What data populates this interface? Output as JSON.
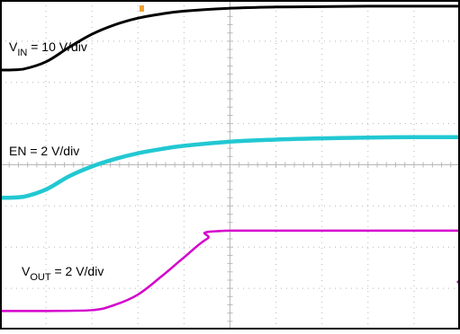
{
  "chart_data": {
    "type": "line",
    "title": "",
    "grid": true,
    "grid_divisions": {
      "x": 10,
      "y": 8
    },
    "colors": {
      "background": "#ffffff",
      "border": "#000000",
      "grid": "#b8b8b8",
      "trigger_marker": "#f0a030",
      "vin": "#000000",
      "en": "#22c8d2",
      "vout": "#d400cc"
    },
    "annotations": {
      "vin": {
        "main": "V",
        "sub": "IN",
        "rest": " = 10 V/div"
      },
      "en": {
        "text": "EN = 2 V/div"
      },
      "vout": {
        "main": "V",
        "sub": "OUT",
        "rest": " = 2 V/div"
      }
    },
    "series": [
      {
        "key": "vin",
        "x": [
          0,
          0.2,
          0.5,
          1.0,
          1.5,
          2.0,
          2.5,
          3.0,
          3.5,
          4.0,
          5.0,
          6.0,
          7.0,
          8.0,
          9.0,
          10.0
        ],
        "y": [
          6.3,
          6.3,
          6.32,
          6.5,
          6.85,
          7.17,
          7.4,
          7.56,
          7.66,
          7.73,
          7.8,
          7.83,
          7.84,
          7.85,
          7.85,
          7.85
        ],
        "width": 3
      },
      {
        "key": "en",
        "x": [
          0,
          0.2,
          0.5,
          1.0,
          1.5,
          2.0,
          2.5,
          3.0,
          3.5,
          4.0,
          5.0,
          6.0,
          7.0,
          8.0,
          9.0,
          10.0
        ],
        "y": [
          3.2,
          3.2,
          3.22,
          3.4,
          3.72,
          3.96,
          4.14,
          4.28,
          4.38,
          4.46,
          4.56,
          4.61,
          4.64,
          4.66,
          4.67,
          4.67
        ],
        "width": 4.5
      },
      {
        "key": "vout",
        "x": [
          0,
          0.2,
          1.0,
          2.0,
          2.5,
          3.0,
          3.5,
          4.0,
          4.5,
          5.0,
          10.0
        ],
        "y": [
          0.45,
          0.45,
          0.45,
          0.47,
          0.6,
          0.85,
          1.28,
          1.75,
          2.2,
          2.4,
          2.4
        ],
        "width": 2.5
      }
    ]
  }
}
